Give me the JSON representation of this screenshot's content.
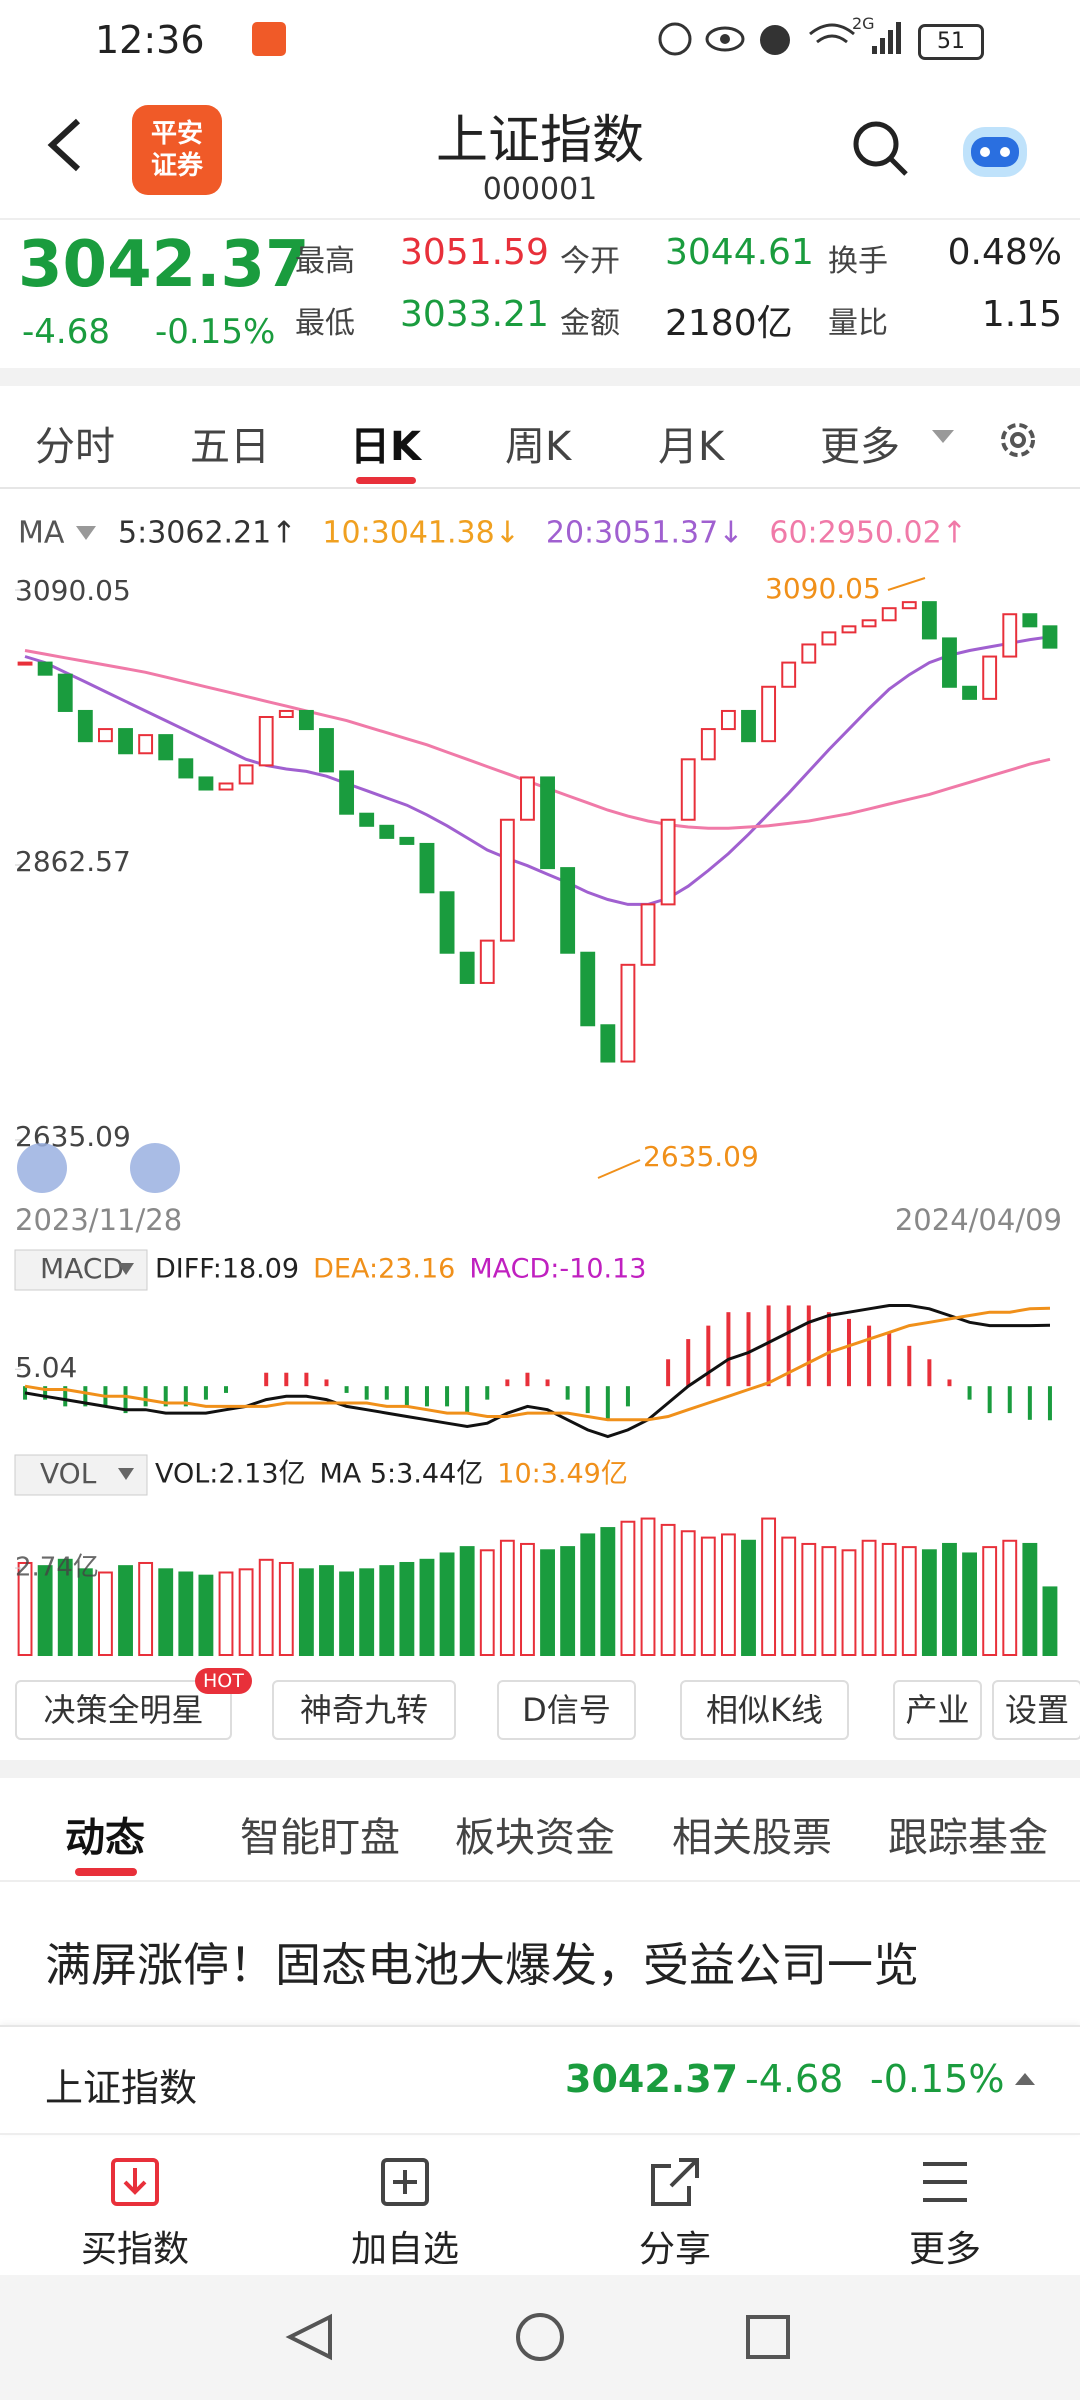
{
  "status_bar": {
    "time": "12:36",
    "network": "2G",
    "battery": "51"
  },
  "header": {
    "logo_line1": "平安",
    "logo_line2": "证券",
    "title": "上证指数",
    "code": "000001"
  },
  "quote": {
    "price": "3042.37",
    "change": "-4.68",
    "change_pct": "-0.15%",
    "stats": [
      {
        "label": "最高",
        "value": "3051.59",
        "color": "#e8303a"
      },
      {
        "label": "今开",
        "value": "3044.61",
        "color": "#1a9c3e"
      },
      {
        "label": "换手",
        "value": "0.48%",
        "color": "#222222"
      },
      {
        "label": "最低",
        "value": "3033.21",
        "color": "#1a9c3e"
      },
      {
        "label": "金额",
        "value": "2180亿",
        "color": "#222222"
      },
      {
        "label": "量比",
        "value": "1.15",
        "color": "#222222"
      }
    ]
  },
  "period_tabs": [
    "分时",
    "五日",
    "日K",
    "周K",
    "月K",
    "更多"
  ],
  "chart_data": [
    {
      "type": "candlestick",
      "ma_label": "MA",
      "ma_legend": [
        {
          "text": "5:3062.21↑",
          "color": "#333333"
        },
        {
          "text": "10:3041.38↓",
          "color": "#f0a020"
        },
        {
          "text": "20:3051.37↓",
          "color": "#a060d0"
        },
        {
          "text": "60:2950.02↑",
          "color": "#f07aa8"
        }
      ],
      "x_start": "2023/11/28",
      "x_end": "2024/04/09",
      "ylim": [
        2635.09,
        3090.05
      ],
      "yticks": [
        3090.05,
        2862.57,
        2635.09
      ],
      "high_mark": 3090.05,
      "low_mark": 2635.09,
      "up_color": "#e8303a",
      "down_color": "#1a9c3e",
      "closes": [
        3030,
        3020,
        2990,
        2965,
        2975,
        2955,
        2970,
        2950,
        2935,
        2925,
        2930,
        2945,
        2985,
        2990,
        2975,
        2940,
        2905,
        2895,
        2885,
        2880,
        2840,
        2790,
        2765,
        2800,
        2900,
        2935,
        2860,
        2790,
        2730,
        2700,
        2780,
        2830,
        2900,
        2950,
        2975,
        2990,
        2965,
        3010,
        3030,
        3045,
        3055,
        3060,
        3065,
        3075,
        3080,
        3050,
        3010,
        3000,
        3035,
        3070,
        3060,
        3042.37
      ],
      "series": [
        {
          "name": "20",
          "color": "#a060d0",
          "values": [
            3035,
            3030,
            3022,
            3014,
            3006,
            2998,
            2990,
            2982,
            2974,
            2966,
            2958,
            2950,
            2945,
            2942,
            2940,
            2936,
            2930,
            2924,
            2918,
            2912,
            2904,
            2895,
            2885,
            2875,
            2868,
            2862,
            2855,
            2848,
            2840,
            2834,
            2830,
            2830,
            2835,
            2845,
            2858,
            2872,
            2888,
            2905,
            2922,
            2940,
            2958,
            2975,
            2992,
            3008,
            3020,
            3030,
            3036,
            3040,
            3043,
            3046,
            3049,
            3051.37
          ]
        },
        {
          "name": "60",
          "color": "#f07aa8",
          "values": [
            3040,
            3037,
            3034,
            3031,
            3028,
            3025,
            3022,
            3018,
            3014,
            3010,
            3006,
            3002,
            2998,
            2994,
            2990,
            2986,
            2982,
            2977,
            2972,
            2967,
            2962,
            2956,
            2950,
            2944,
            2938,
            2932,
            2926,
            2920,
            2914,
            2908,
            2903,
            2899,
            2896,
            2894,
            2893,
            2893,
            2894,
            2895,
            2897,
            2899,
            2902,
            2905,
            2909,
            2913,
            2917,
            2921,
            2926,
            2931,
            2936,
            2941,
            2946,
            2950.02
          ]
        }
      ]
    },
    {
      "type": "macd",
      "label": "MACD",
      "legend": [
        {
          "text": "DIFF:18.09",
          "color": "#222222"
        },
        {
          "text": "DEA:23.16",
          "color": "#f0901a"
        },
        {
          "text": "MACD:-10.13",
          "color": "#c020c0"
        }
      ],
      "ylim": [
        -16,
        28
      ],
      "yticks": [
        5.04
      ],
      "hist": [
        -4,
        -4,
        -6,
        -6,
        -6,
        -8,
        -6,
        -6,
        -6,
        -4,
        -2,
        0,
        4,
        4,
        4,
        2,
        -2,
        -4,
        -4,
        -6,
        -6,
        -6,
        -8,
        -4,
        2,
        4,
        2,
        -4,
        -8,
        -10,
        -6,
        0,
        8,
        14,
        18,
        22,
        22,
        24,
        24,
        24,
        22,
        20,
        18,
        16,
        12,
        8,
        2,
        -4,
        -8,
        -8,
        -10,
        -10.13
      ],
      "series": [
        {
          "name": "DIFF",
          "color": "#111111",
          "values": [
            -2,
            -3,
            -4,
            -5,
            -6,
            -7,
            -7,
            -8,
            -8,
            -8,
            -7,
            -6,
            -4,
            -3,
            -3,
            -4,
            -6,
            -7,
            -8,
            -9,
            -10,
            -11,
            -12,
            -11,
            -8,
            -6,
            -7,
            -10,
            -13,
            -15,
            -13,
            -10,
            -5,
            0,
            4,
            8,
            10,
            13,
            16,
            19,
            21,
            22,
            23,
            24,
            24,
            23,
            21,
            19,
            18,
            18,
            18,
            18.09
          ]
        },
        {
          "name": "DEA",
          "color": "#f0901a",
          "values": [
            0,
            -1,
            -1,
            -2,
            -3,
            -3,
            -4,
            -5,
            -5,
            -6,
            -6,
            -6,
            -6,
            -5,
            -5,
            -5,
            -5,
            -5,
            -6,
            -6,
            -7,
            -8,
            -8,
            -9,
            -9,
            -8,
            -8,
            -8,
            -9,
            -10,
            -10,
            -10,
            -9,
            -7,
            -5,
            -3,
            -1,
            1,
            4,
            7,
            10,
            12,
            14,
            16,
            18,
            19,
            20,
            21,
            22,
            22,
            23,
            23.16
          ]
        }
      ]
    },
    {
      "type": "volume",
      "label": "VOL",
      "legend": [
        {
          "text": "VOL:2.13亿",
          "color": "#222222"
        },
        {
          "text": "MA 5:3.44亿",
          "color": "#222222"
        },
        {
          "text": "10:3.49亿",
          "color": "#f0901a"
        }
      ],
      "ylim": [
        0,
        5.2
      ],
      "yticks": [
        {
          "value": 2.74,
          "label": "2.74亿"
        }
      ],
      "values": [
        2.9,
        2.8,
        3.0,
        2.7,
        2.6,
        2.8,
        2.9,
        2.7,
        2.6,
        2.5,
        2.6,
        2.7,
        3.0,
        2.9,
        2.7,
        2.8,
        2.6,
        2.7,
        2.8,
        2.9,
        3.0,
        3.2,
        3.4,
        3.3,
        3.6,
        3.5,
        3.3,
        3.4,
        3.8,
        4.0,
        4.2,
        4.3,
        4.1,
        3.9,
        3.7,
        3.8,
        3.6,
        4.3,
        3.7,
        3.5,
        3.4,
        3.3,
        3.6,
        3.5,
        3.4,
        3.3,
        3.5,
        3.2,
        3.4,
        3.6,
        3.5,
        2.13
      ]
    }
  ],
  "tools": [
    "决策全明星",
    "神奇九转",
    "D信号",
    "相似K线",
    "产业",
    "设置"
  ],
  "hot_badge": "HOT",
  "news_tabs": [
    "动态",
    "智能盯盘",
    "板块资金",
    "相关股票",
    "跟踪基金"
  ],
  "headline": "满屏涨停！固态电池大爆发，受益公司一览",
  "ticker": {
    "name": "上证指数",
    "price": "3042.37",
    "change": "-4.68",
    "change_pct": "-0.15%"
  },
  "actions": [
    "买指数",
    "加自选",
    "分享",
    "更多"
  ]
}
